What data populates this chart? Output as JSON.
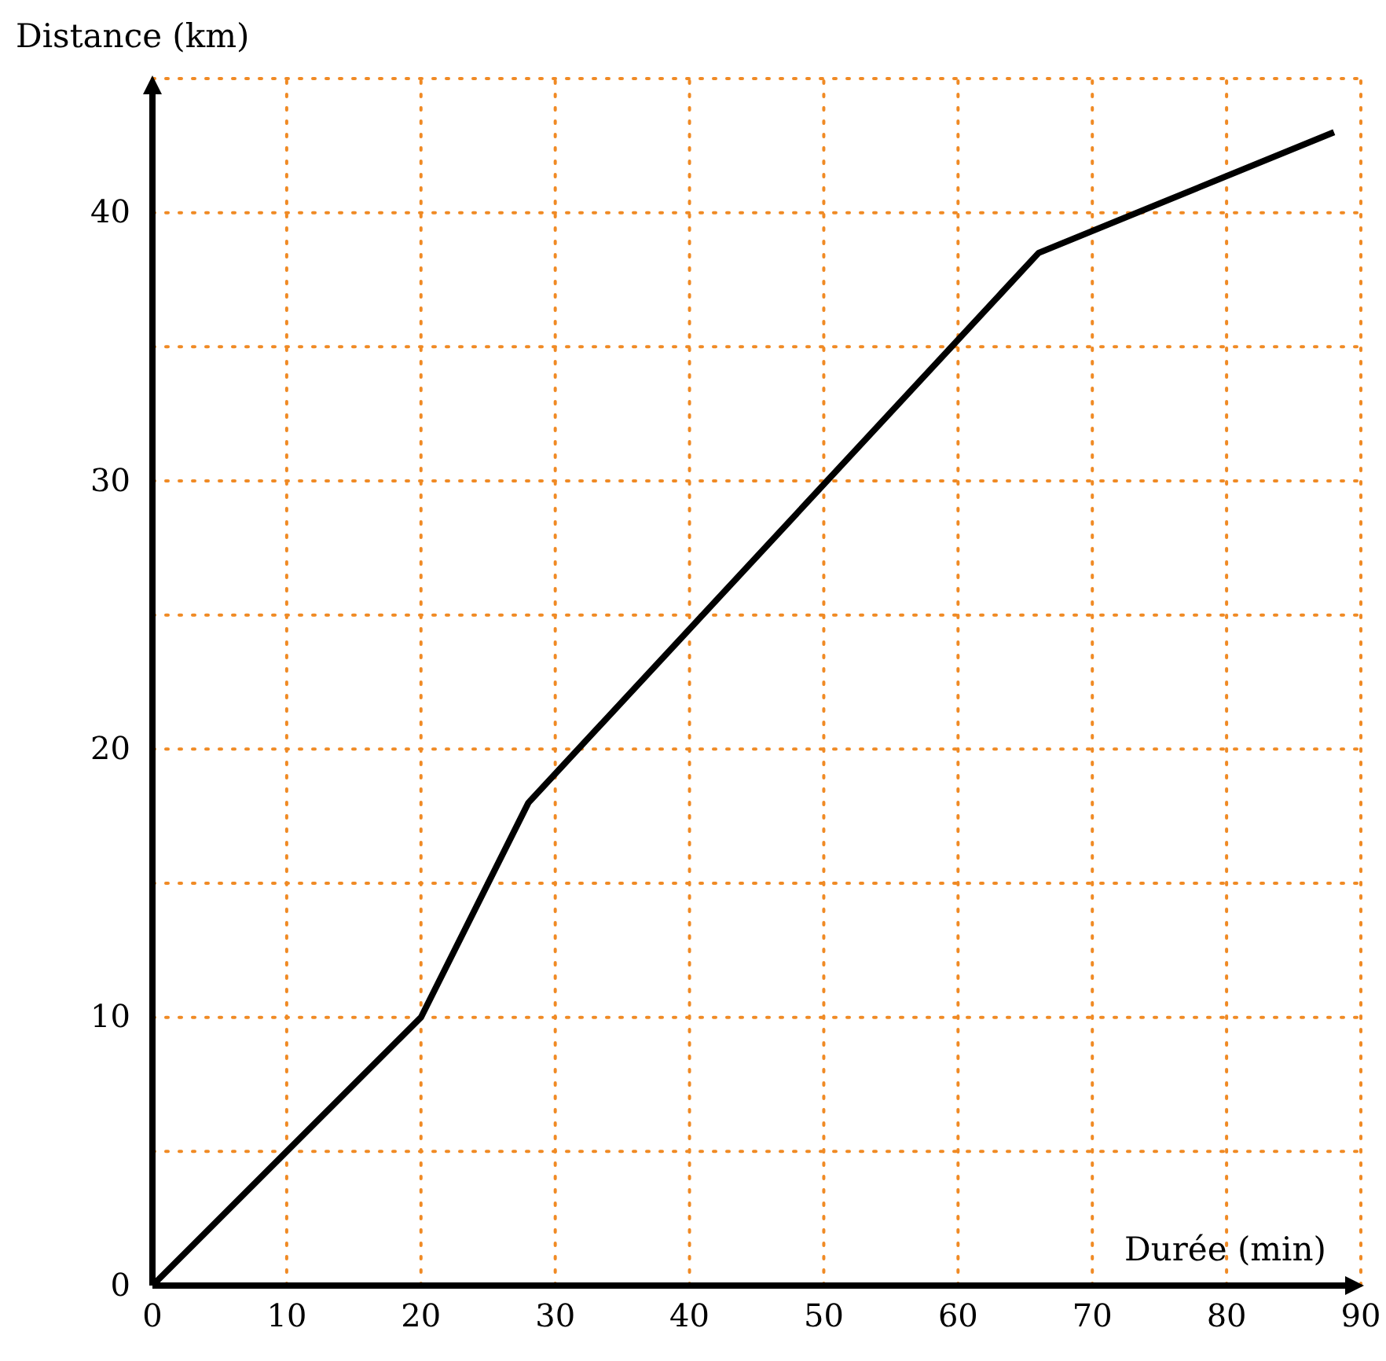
{
  "chart_data": {
    "type": "line",
    "xlabel": "Durée (min)",
    "ylabel": "Distance (km)",
    "x": [
      0,
      20,
      28,
      66,
      88
    ],
    "series": [
      {
        "color": "#000000",
        "values": [
          0,
          10,
          18,
          38.5,
          43
        ]
      }
    ],
    "xlim": [
      0,
      90
    ],
    "ylim": [
      0,
      45
    ],
    "xticks": [
      0,
      10,
      20,
      30,
      40,
      50,
      60,
      70,
      80,
      90
    ],
    "yticks": [
      0,
      {
        "value": 5,
        "label": null
      },
      10,
      {
        "value": 15,
        "label": null
      },
      20,
      {
        "value": 25,
        "label": null
      },
      30,
      {
        "value": 35,
        "label": null
      },
      40,
      {
        "value": 45,
        "label": null
      }
    ],
    "grid": true,
    "marker": "none",
    "line_style": "solid"
  }
}
